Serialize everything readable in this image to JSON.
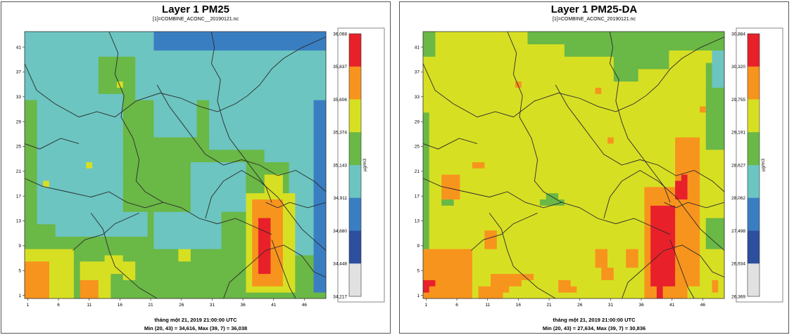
{
  "colors": {
    "red": "#e8202a",
    "orange": "#f7941d",
    "yellow": "#d7df23",
    "green": "#6ab846",
    "cyan": "#6cc5c0",
    "blue": "#3a7ec2",
    "darkblue": "#2d4f9e",
    "gray": "#e1e1e1",
    "boundary": "#2b2b2b"
  },
  "chart_data": [
    {
      "type": "heatmap",
      "title": "Layer 1 PM25",
      "subtitle": "[1]=COMBINE_ACONC__20190121.nc",
      "footer_time": "tháng một 21, 2019 21:00:00 UTC",
      "footer_stats": "Min (20, 43) = 34,616, Max (39, 7) = 36,038",
      "unit": "µg/m3",
      "x_ticks": [
        "1",
        "6",
        "11",
        "16",
        "21",
        "26",
        "31",
        "36",
        "41",
        "46"
      ],
      "y_ticks": [
        "1",
        "5",
        "9",
        "13",
        "17",
        "21",
        "25",
        "29",
        "33",
        "37",
        "41"
      ],
      "grid_cols": 49,
      "grid_rows": 43,
      "legend_labels": [
        "36,068",
        "35,837",
        "35,606",
        "35,374",
        "35,143",
        "34,911",
        "34,680",
        "34,448",
        "34,217"
      ],
      "legend_colors": [
        "red",
        "orange",
        "yellow",
        "green",
        "cyan",
        "blue",
        "darkblue",
        "gray"
      ],
      "field": {
        "background": "green",
        "regions": [
          {
            "x": [
              1,
              49
            ],
            "y": [
              40,
              43
            ],
            "value": "cyan"
          },
          {
            "x": [
              22,
              49
            ],
            "y": [
              41,
              43
            ],
            "value": "blue"
          },
          {
            "x": [
              36,
              49
            ],
            "y": [
              42,
              43
            ],
            "value": "blue"
          },
          {
            "x": [
              46,
              49
            ],
            "y": [
              40,
              43
            ],
            "value": "blue"
          },
          {
            "x": [
              1,
              12
            ],
            "y": [
              33,
              40
            ],
            "value": "cyan"
          },
          {
            "x": [
              19,
              49
            ],
            "y": [
              33,
              40
            ],
            "value": "cyan"
          },
          {
            "x": [
              3,
              16
            ],
            "y": [
              13,
              33
            ],
            "value": "cyan"
          },
          {
            "x": [
              22,
              28
            ],
            "y": [
              27,
              33
            ],
            "value": "cyan"
          },
          {
            "x": [
              31,
              39
            ],
            "y": [
              25,
              33
            ],
            "value": "cyan"
          },
          {
            "x": [
              40,
              48
            ],
            "y": [
              23,
              32
            ],
            "value": "cyan"
          },
          {
            "x": [
              44,
              48
            ],
            "y": [
              8,
              23
            ],
            "value": "cyan"
          },
          {
            "x": [
              28,
              36
            ],
            "y": [
              15,
              22
            ],
            "value": "cyan"
          },
          {
            "x": [
              22,
              32
            ],
            "y": [
              9,
              14
            ],
            "value": "cyan"
          },
          {
            "x": [
              6,
              20
            ],
            "y": [
              11,
              14
            ],
            "value": "cyan"
          },
          {
            "x": [
              48,
              49
            ],
            "y": [
              2,
              32
            ],
            "value": "blue"
          },
          {
            "x": [
              37,
              44
            ],
            "y": [
              2,
              17
            ],
            "value": "yellow"
          },
          {
            "x": [
              40,
              42
            ],
            "y": [
              17,
              20
            ],
            "value": "yellow"
          },
          {
            "x": [
              38,
              42
            ],
            "y": [
              3,
              16
            ],
            "value": "orange"
          },
          {
            "x": [
              39,
              40
            ],
            "y": [
              5,
              13
            ],
            "value": "red"
          },
          {
            "x": [
              1,
              8
            ],
            "y": [
              1,
              8
            ],
            "value": "yellow"
          },
          {
            "x": [
              1,
              4
            ],
            "y": [
              1,
              6
            ],
            "value": "orange"
          },
          {
            "x": [
              10,
              14
            ],
            "y": [
              1,
              6
            ],
            "value": "yellow"
          },
          {
            "x": [
              10,
              12
            ],
            "y": [
              1,
              3
            ],
            "value": "orange"
          },
          {
            "x": [
              14,
              16
            ],
            "y": [
              5,
              7
            ],
            "value": "yellow"
          },
          {
            "x": [
              17,
              18
            ],
            "y": [
              4,
              6
            ],
            "value": "yellow"
          },
          {
            "x": [
              26,
              27
            ],
            "y": [
              7,
              8
            ],
            "value": "yellow"
          },
          {
            "x": [
              16,
              16
            ],
            "y": [
              35,
              35
            ],
            "value": "yellow"
          },
          {
            "x": [
              15,
              16
            ],
            "y": [
              36,
              36
            ],
            "value": "green"
          },
          {
            "x": [
              11,
              11
            ],
            "y": [
              22,
              22
            ],
            "value": "yellow"
          },
          {
            "x": [
              4,
              4
            ],
            "y": [
              19,
              19
            ],
            "value": "yellow"
          }
        ]
      }
    },
    {
      "type": "heatmap",
      "title": "Layer 1 PM25-DA",
      "subtitle": "[1]=COMBINE_ACONC_20190121.nc",
      "footer_time": "tháng một 21, 2019 21:00:00 UTC",
      "footer_stats": "Min (20, 43) = 27,634, Max (39, 7) = 30,836",
      "unit": "µg/m3",
      "x_ticks": [
        "1",
        "6",
        "11",
        "16",
        "21",
        "26",
        "31",
        "36",
        "41",
        "46"
      ],
      "y_ticks": [
        "1",
        "5",
        "9",
        "13",
        "17",
        "21",
        "25",
        "29",
        "33",
        "37",
        "41"
      ],
      "grid_cols": 49,
      "grid_rows": 43,
      "legend_labels": [
        "30,884",
        "30,320",
        "29,755",
        "29,191",
        "28,627",
        "28,062",
        "27,498",
        "26,934",
        "26,369"
      ],
      "legend_colors": [
        "red",
        "orange",
        "yellow",
        "green",
        "cyan",
        "blue",
        "darkblue",
        "gray"
      ],
      "field": {
        "background": "yellow",
        "regions": [
          {
            "x": [
              1,
              2
            ],
            "y": [
              40,
              43
            ],
            "value": "green"
          },
          {
            "x": [
              1,
              1
            ],
            "y": [
              1,
              30
            ],
            "value": "green"
          },
          {
            "x": [
              18,
              34
            ],
            "y": [
              42,
              43
            ],
            "value": "green"
          },
          {
            "x": [
              24,
              31
            ],
            "y": [
              40,
              41
            ],
            "value": "green"
          },
          {
            "x": [
              32,
              40
            ],
            "y": [
              38,
              43
            ],
            "value": "green"
          },
          {
            "x": [
              32,
              35
            ],
            "y": [
              36,
              38
            ],
            "value": "green"
          },
          {
            "x": [
              40,
              49
            ],
            "y": [
              41,
              43
            ],
            "value": "green"
          },
          {
            "x": [
              47,
              49
            ],
            "y": [
              25,
              38
            ],
            "value": "green"
          },
          {
            "x": [
              47,
              49
            ],
            "y": [
              9,
              13
            ],
            "value": "green"
          },
          {
            "x": [
              21,
              22
            ],
            "y": [
              16,
              17
            ],
            "value": "green"
          },
          {
            "x": [
              20,
              23
            ],
            "y": [
              16,
              16
            ],
            "value": "green"
          },
          {
            "x": [
              4,
              5
            ],
            "y": [
              16,
              16
            ],
            "value": "green"
          },
          {
            "x": [
              48,
              49
            ],
            "y": [
              35,
              40
            ],
            "value": "cyan"
          },
          {
            "x": [
              37,
              43
            ],
            "y": [
              1,
              18
            ],
            "value": "orange"
          },
          {
            "x": [
              42,
              45
            ],
            "y": [
              16,
              26
            ],
            "value": "orange"
          },
          {
            "x": [
              44,
              45
            ],
            "y": [
              3,
              16
            ],
            "value": "orange"
          },
          {
            "x": [
              38,
              41
            ],
            "y": [
              3,
              15
            ],
            "value": "red"
          },
          {
            "x": [
              39,
              39
            ],
            "y": [
              1,
              3
            ],
            "value": "red"
          },
          {
            "x": [
              42,
              43
            ],
            "y": [
              17,
              19
            ],
            "value": "red"
          },
          {
            "x": [
              43,
              43
            ],
            "y": [
              20,
              20
            ],
            "value": "red"
          },
          {
            "x": [
              1,
              8
            ],
            "y": [
              1,
              8
            ],
            "value": "orange"
          },
          {
            "x": [
              1,
              1
            ],
            "y": [
              2,
              3
            ],
            "value": "red"
          },
          {
            "x": [
              2,
              2
            ],
            "y": [
              3,
              3
            ],
            "value": "red"
          },
          {
            "x": [
              4,
              6
            ],
            "y": [
              17,
              20
            ],
            "value": "orange"
          },
          {
            "x": [
              11,
              12
            ],
            "y": [
              9,
              11
            ],
            "value": "orange"
          },
          {
            "x": [
              15,
              16
            ],
            "y": [
              3,
              4
            ],
            "value": "orange"
          },
          {
            "x": [
              17,
              18
            ],
            "y": [
              4,
              4
            ],
            "value": "orange"
          },
          {
            "x": [
              10,
              13
            ],
            "y": [
              1,
              2
            ],
            "value": "orange"
          },
          {
            "x": [
              12,
              14
            ],
            "y": [
              2,
              4
            ],
            "value": "orange"
          },
          {
            "x": [
              29,
              30
            ],
            "y": [
              6,
              8
            ],
            "value": "orange"
          },
          {
            "x": [
              30,
              31
            ],
            "y": [
              4,
              5
            ],
            "value": "orange"
          },
          {
            "x": [
              9,
              10
            ],
            "y": [
              22,
              22
            ],
            "value": "orange"
          },
          {
            "x": [
              16,
              16
            ],
            "y": [
              35,
              35
            ],
            "value": "orange"
          },
          {
            "x": [
              29,
              29
            ],
            "y": [
              34,
              34
            ],
            "value": "orange"
          },
          {
            "x": [
              31,
              31
            ],
            "y": [
              26,
              26
            ],
            "value": "orange"
          },
          {
            "x": [
              46,
              46
            ],
            "y": [
              31,
              31
            ],
            "value": "orange"
          },
          {
            "x": [
              48,
              48
            ],
            "y": [
              2,
              3
            ],
            "value": "orange"
          },
          {
            "x": [
              34,
              35
            ],
            "y": [
              6,
              8
            ],
            "value": "orange"
          },
          {
            "x": [
              23,
              24
            ],
            "y": [
              2,
              3
            ],
            "value": "orange"
          },
          {
            "x": [
              25,
              25
            ],
            "y": [
              2,
              2
            ],
            "value": "orange"
          }
        ]
      }
    }
  ]
}
